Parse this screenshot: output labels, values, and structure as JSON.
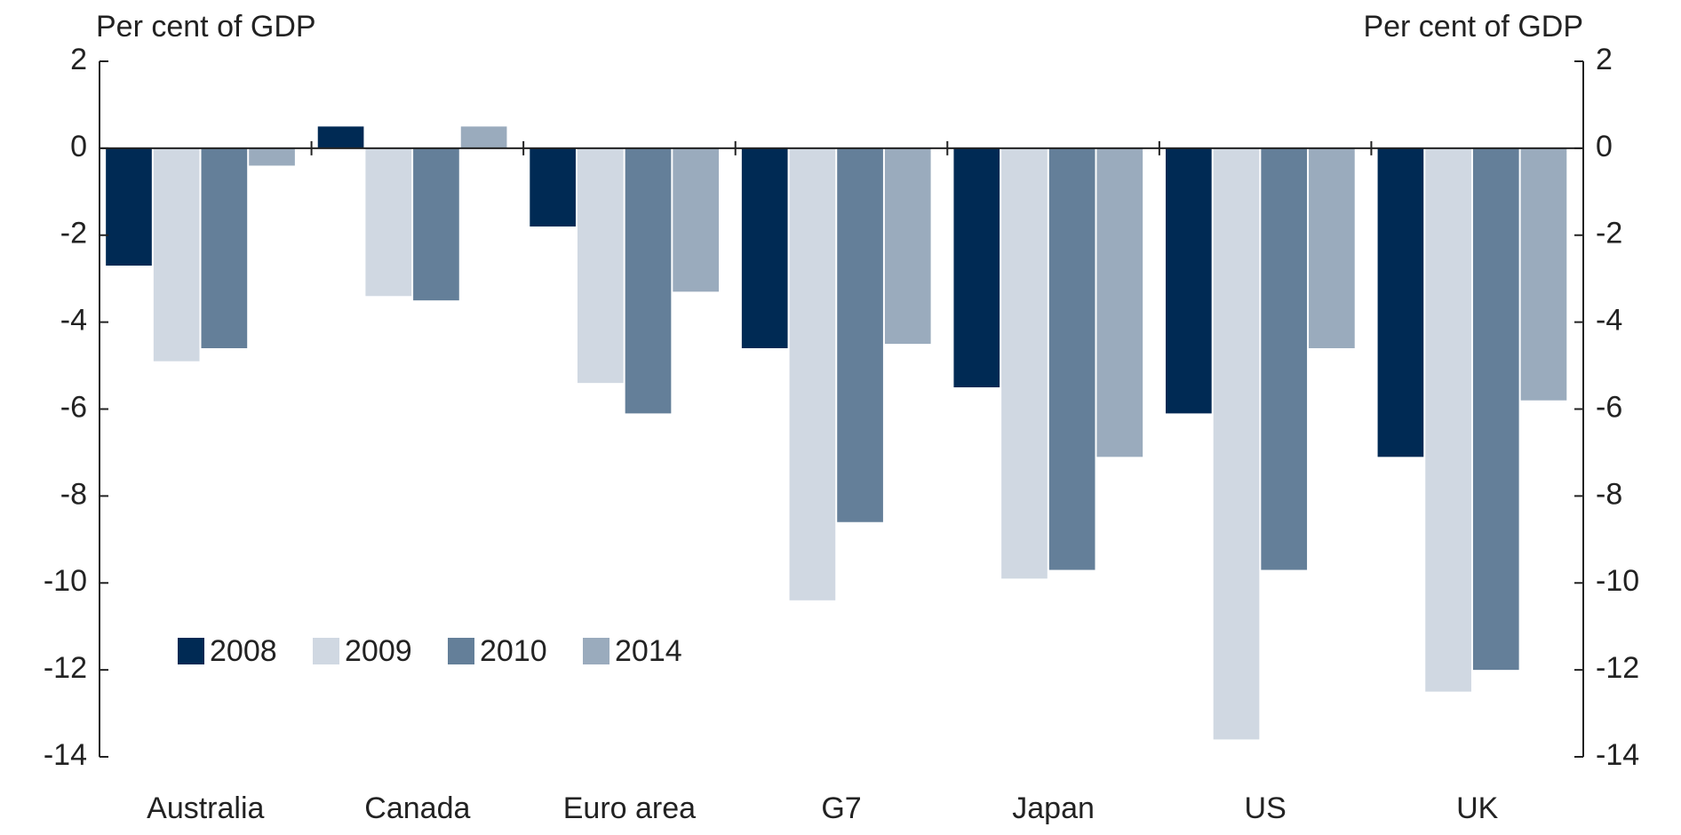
{
  "chart_data": {
    "type": "bar",
    "y_label": "Per cent of GDP",
    "y2_label": "Per cent of GDP",
    "categories": [
      "Australia",
      "Canada",
      "Euro area",
      "G7",
      "Japan",
      "US",
      "UK"
    ],
    "series": [
      {
        "name": "2008",
        "color": "#002a54",
        "values": [
          -2.7,
          0.5,
          -1.8,
          -4.6,
          -5.5,
          -6.1,
          -7.1
        ]
      },
      {
        "name": "2009",
        "color": "#d0d8e2",
        "values": [
          -4.9,
          -3.4,
          -5.4,
          -10.4,
          -9.9,
          -13.6,
          -12.5
        ]
      },
      {
        "name": "2010",
        "color": "#647f99",
        "values": [
          -4.6,
          -3.5,
          -6.1,
          -8.6,
          -9.7,
          -9.7,
          -12.0
        ]
      },
      {
        "name": "2014",
        "color": "#9aabbd",
        "values": [
          -0.4,
          0.5,
          -3.3,
          -4.5,
          -7.1,
          -4.6,
          -5.8
        ]
      }
    ],
    "ylim": [
      -14,
      2
    ],
    "yticks": [
      -14,
      -12,
      -10,
      -8,
      -6,
      -4,
      -2,
      0,
      2
    ],
    "y2lim": [
      -14,
      2
    ],
    "y2ticks": [
      -14,
      -12,
      -10,
      -8,
      -6,
      -4,
      -2,
      0,
      2
    ],
    "legend": "lower left"
  }
}
